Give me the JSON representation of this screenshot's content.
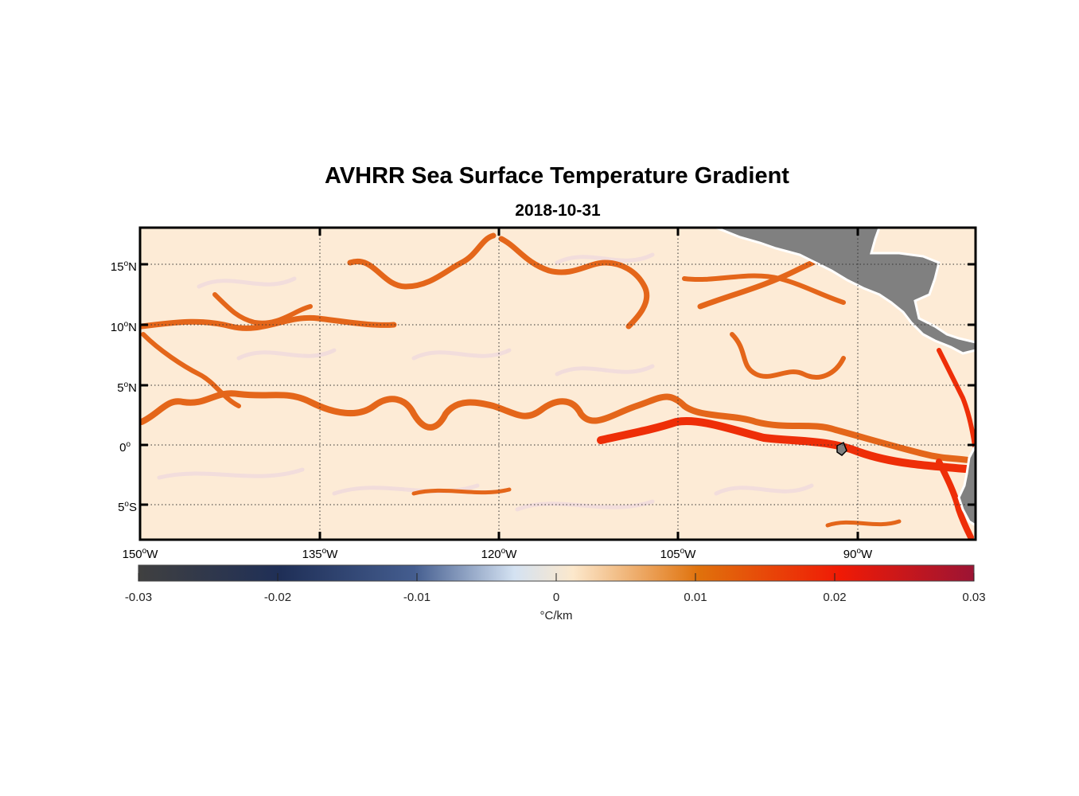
{
  "title": "AVHRR Sea Surface Temperature Gradient",
  "subtitle": "2018-10-31",
  "map": {
    "lon_range": [
      -150,
      -83
    ],
    "lat_range": [
      -8,
      18
    ],
    "lat_ticks": [
      {
        "value": 15,
        "num": "15",
        "hemi": "N"
      },
      {
        "value": 10,
        "num": "10",
        "hemi": "N"
      },
      {
        "value": 5,
        "num": "5",
        "hemi": "N"
      },
      {
        "value": 0,
        "num": "0",
        "hemi": ""
      },
      {
        "value": -5,
        "num": "5",
        "hemi": "S"
      }
    ],
    "lon_ticks": [
      {
        "value": -150,
        "num": "150",
        "hemi": "W"
      },
      {
        "value": -135,
        "num": "135",
        "hemi": "W"
      },
      {
        "value": -120,
        "num": "120",
        "hemi": "W"
      },
      {
        "value": -105,
        "num": "105",
        "hemi": "W"
      },
      {
        "value": -90,
        "num": "90",
        "hemi": "W"
      }
    ],
    "grid": "dotted",
    "land_color": "#808080",
    "background_color": "#fdebd6",
    "front_colors": [
      "#e06a10",
      "#ee2e08"
    ]
  },
  "colorbar": {
    "min": -0.03,
    "max": 0.03,
    "ticks": [
      "-0.03",
      "-0.02",
      "-0.01",
      "0",
      "0.01",
      "0.02",
      "0.03"
    ],
    "unit_label": "°C/km",
    "colors": [
      "#404040",
      "#1f2f57",
      "#445d8f",
      "#d4e2f2",
      "#fce8cc",
      "#e0720c",
      "#f01a05",
      "#9c1434"
    ]
  }
}
